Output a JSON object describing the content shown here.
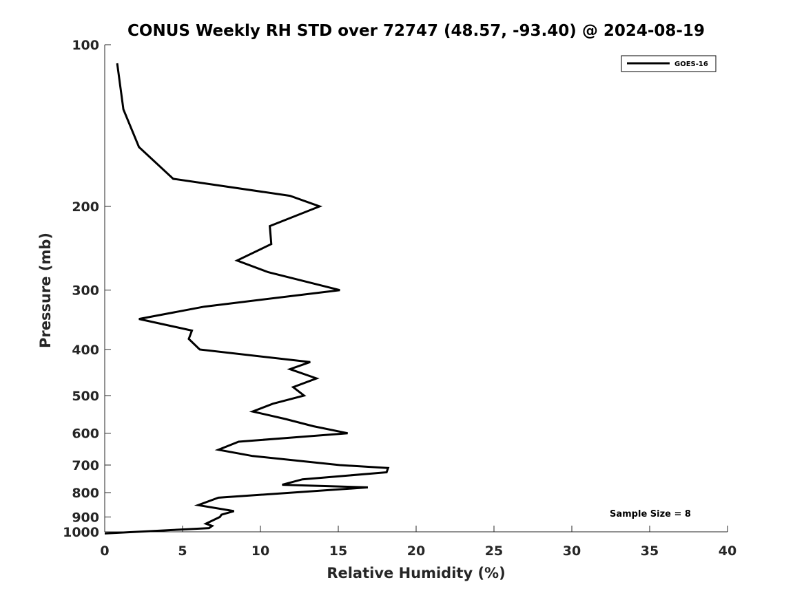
{
  "chart_data": {
    "type": "line",
    "title": "CONUS Weekly RH STD over 72747 (48.57, -93.40) @ 2024-08-19",
    "xlabel": "Relative Humidity (%)",
    "ylabel": "Pressure (mb)",
    "xlim": [
      0,
      40
    ],
    "ylim": [
      100,
      1000
    ],
    "y_scale": "log",
    "y_reversed": true,
    "grid": false,
    "x_ticks": [
      "0",
      "5",
      "10",
      "15",
      "20",
      "25",
      "30",
      "35",
      "40"
    ],
    "y_ticks": [
      "100",
      "200",
      "300",
      "400",
      "500",
      "600",
      "700",
      "800",
      "900",
      "1000"
    ],
    "legend": {
      "position": "top-right",
      "entries": [
        "GOES-16"
      ]
    },
    "annotation": "Sample Size = 8",
    "series": [
      {
        "name": "GOES-16",
        "color": "#000000",
        "x": [
          0.8,
          1.2,
          2.2,
          4.4,
          11.9,
          13.8,
          10.6,
          10.7,
          8.5,
          10.5,
          15.1,
          6.4,
          2.2,
          5.6,
          5.4,
          6.1,
          13.2,
          11.9,
          13.6,
          12.1,
          12.8,
          10.8,
          9.5,
          11.6,
          13.4,
          15.6,
          8.6,
          7.3,
          9.5,
          15.1,
          18.2,
          18.1,
          12.7,
          11.4,
          16.9,
          7.3,
          6.0,
          8.3,
          7.5,
          7.4,
          6.5,
          6.9,
          6.7,
          0.0
        ],
        "y": [
          100,
          125,
          150,
          175,
          190,
          200,
          220,
          240,
          260,
          275,
          300,
          325,
          345,
          365,
          380,
          400,
          425,
          440,
          460,
          480,
          500,
          520,
          540,
          560,
          580,
          600,
          625,
          650,
          670,
          700,
          710,
          725,
          750,
          770,
          780,
          820,
          850,
          875,
          890,
          900,
          930,
          940,
          950,
          975
        ]
      }
    ]
  }
}
